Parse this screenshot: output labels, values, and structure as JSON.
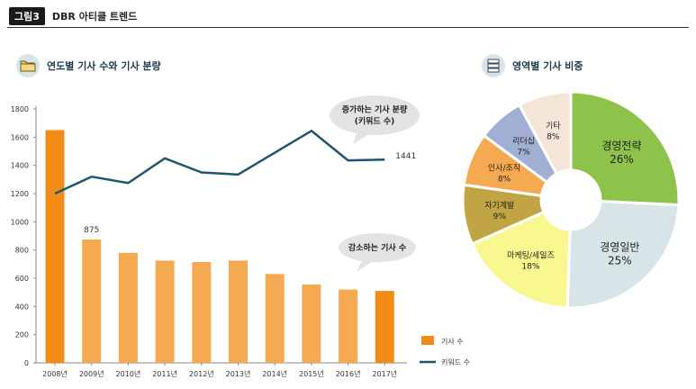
{
  "header": {
    "tag": "그림3",
    "title": "DBR 아티클 트렌드"
  },
  "left_section": {
    "title": "연도별 기사 수와 기사 분량",
    "icon": "folder-icon"
  },
  "right_section": {
    "title": "영역별 기사 비중",
    "icon": "server-icon"
  },
  "colors": {
    "bar": "#f5aa52",
    "bar_highlight": "#f28c17",
    "line": "#1e566b",
    "bubble": "#e2e3e4"
  },
  "chart_data": [
    {
      "type": "bar",
      "categories": [
        "2008년",
        "2009년",
        "2010년",
        "2011년",
        "2012년",
        "2013년",
        "2014년",
        "2015년",
        "2016년",
        "2017년"
      ],
      "series": [
        {
          "name": "기사 수",
          "type": "bar",
          "values": [
            1650,
            875,
            780,
            725,
            715,
            725,
            630,
            555,
            520,
            510
          ]
        },
        {
          "name": "키워드 수",
          "type": "line",
          "values": [
            1200,
            1320,
            1275,
            1450,
            1350,
            1335,
            1490,
            1645,
            1435,
            1441
          ]
        }
      ],
      "data_labels": [
        {
          "category": "2009년",
          "text": "875"
        },
        {
          "category": "2017년",
          "text": "1441"
        }
      ],
      "yticks": [
        "0",
        "200",
        "400",
        "600",
        "800",
        "1000",
        "1200",
        "1400",
        "1600",
        "1800"
      ],
      "ylim": [
        0,
        1800
      ],
      "grid": false,
      "legend": "bottom-right",
      "annotations": [
        {
          "lines": [
            "증가하는 기사 분량",
            "(키워드 수)"
          ]
        },
        {
          "lines": [
            "감소하는 기사 수"
          ]
        }
      ]
    },
    {
      "type": "pie",
      "donut": true,
      "slices": [
        {
          "label": "경영전략",
          "value": 26,
          "text": "26%",
          "color": "#8dc34a"
        },
        {
          "label": "경영일반",
          "value": 25,
          "text": "25%",
          "color": "#d8e5e8"
        },
        {
          "label": "마케팅/세일즈",
          "value": 18,
          "text": "18%",
          "color": "#f9f790"
        },
        {
          "label": "자기계발",
          "value": 9,
          "text": "9%",
          "color": "#c1a444"
        },
        {
          "label": "인사/조직",
          "value": 8,
          "text": "8%",
          "color": "#f5aa52"
        },
        {
          "label": "리더십",
          "value": 7,
          "text": "7%",
          "color": "#a1afd3"
        },
        {
          "label": "기타",
          "value": 8,
          "text": "8%",
          "color": "#f3e6d8"
        }
      ]
    }
  ]
}
